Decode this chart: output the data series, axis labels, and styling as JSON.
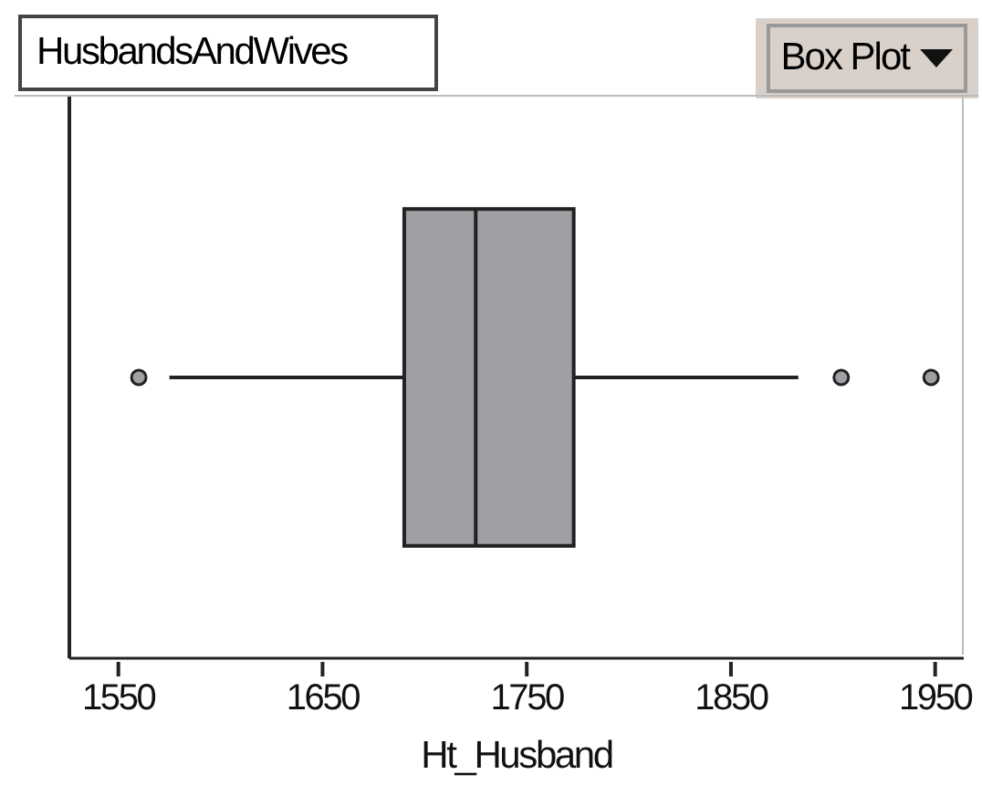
{
  "chart_data": {
    "type": "box",
    "title": "HusbandsAndWives",
    "annotations": [
      "Box Plot"
    ],
    "xlabel": "Ht_Husband",
    "orientation": "horizontal",
    "categories": [
      null
    ],
    "color": "#a0a0a4",
    "boxes": [
      {
        "low": 1575,
        "q1": 1690,
        "median": 1725,
        "q3": 1773,
        "high": 1883,
        "outliers": [
          1560,
          1904,
          1948
        ]
      }
    ],
    "xlim": [
      1526,
      1964
    ],
    "xticks": [
      1550,
      1650,
      1750,
      1850,
      1950
    ],
    "grid": false
  }
}
